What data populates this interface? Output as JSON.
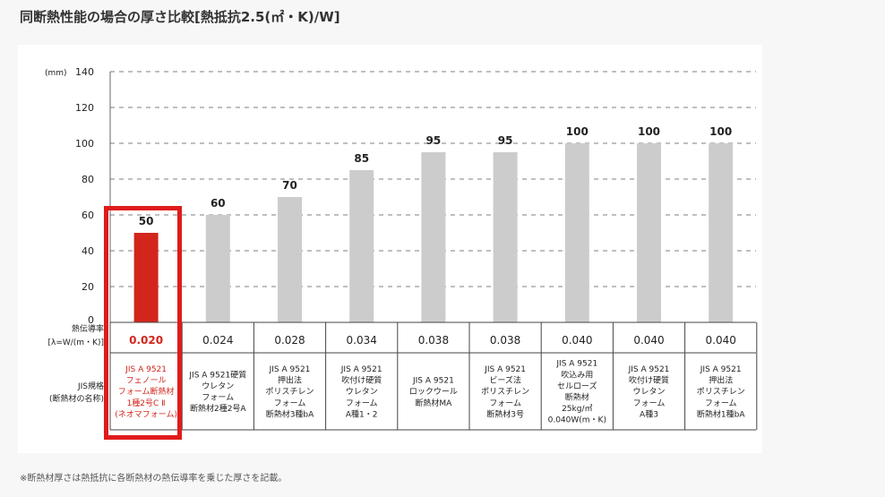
{
  "title": "同断熱性能の場合の厚さ比較[熱抵抗2.5(㎡・K)/W]",
  "footnote": "※断熱材厚さは熱抵抗に各断熱材の熱伝導率を乗じた厚さを記載。",
  "colors": {
    "highlight": "#d2261c",
    "bar": "#cccccc",
    "frame": "#e01b1b"
  },
  "chart_data": {
    "type": "bar",
    "unit_label": "(mm)",
    "ylim": [
      0,
      140
    ],
    "yticks": [
      0,
      20,
      40,
      60,
      80,
      100,
      120,
      140
    ],
    "grid": true,
    "values": [
      50,
      60,
      70,
      85,
      95,
      95,
      100,
      100,
      100
    ],
    "highlight_index": 0,
    "row_headers": {
      "conductivity": [
        "熱伝導率",
        "[λ=W/(m・K)]"
      ],
      "jis": [
        "JIS規格",
        "(断熱材の名称)"
      ]
    },
    "conductivity": [
      "0.020",
      "0.024",
      "0.028",
      "0.034",
      "0.038",
      "0.038",
      "0.040",
      "0.040",
      "0.040"
    ],
    "categories": [
      [
        "JIS A 9521",
        "フェノール",
        "フォーム断熱材",
        "1種2号C Ⅱ",
        "(ネオマフォーム)"
      ],
      [
        "JIS A 9521硬質",
        "ウレタン",
        "フォーム",
        "断熱材2種2号A"
      ],
      [
        "JIS A 9521",
        "押出法",
        "ポリスチレン",
        "フォーム",
        "断熱材3種bA"
      ],
      [
        "JIS A 9521",
        "吹付け硬質",
        "ウレタン",
        "フォーム",
        "A種1・2"
      ],
      [
        "JIS A 9521",
        "ロックウール",
        "断熱材MA"
      ],
      [
        "JIS A 9521",
        "ビーズ法",
        "ポリスチレン",
        "フォーム",
        "断熱材3号"
      ],
      [
        "JIS A 9521",
        "吹込み用",
        "セルローズ",
        "断熱材",
        "25kg/㎥",
        "0.040W(m・K)"
      ],
      [
        "JIS A 9521",
        "吹付け硬質",
        "ウレタン",
        "フォーム",
        "A種3"
      ],
      [
        "JIS A 9521",
        "押出法",
        "ポリスチレン",
        "フォーム",
        "断熱材1種bA"
      ]
    ]
  }
}
